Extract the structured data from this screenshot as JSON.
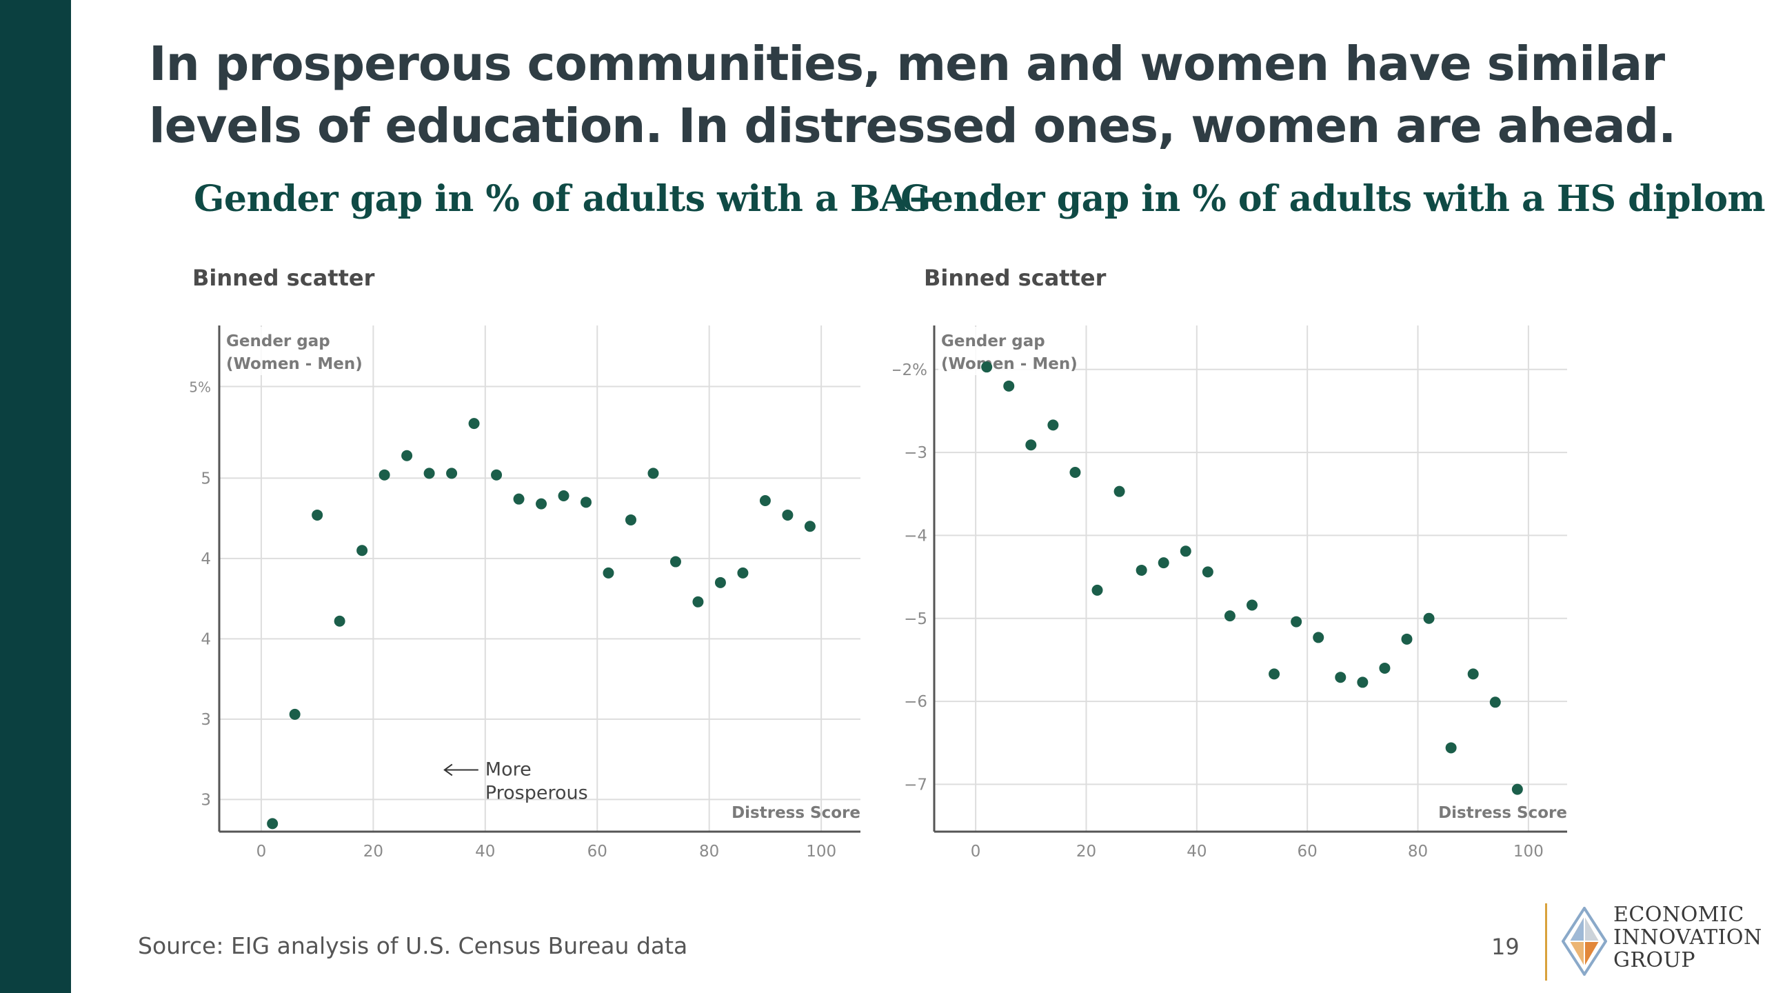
{
  "headline": "In prosperous communities, men and women have similar levels of education. In distressed ones, women are ahead.",
  "source": "Source: EIG analysis of U.S. Census Bureau data",
  "page_number": "19",
  "logo": {
    "lines": [
      "ECONOMIC",
      "INNOVATION",
      "GROUP"
    ]
  },
  "colors": {
    "sidebar": "#0b4040",
    "title": "#0f4a45",
    "dot": "#1b5e4a",
    "grid": "#dddddd",
    "logo_accent": "#d9a23c"
  },
  "chart_data": [
    {
      "type": "scatter",
      "title": "Gender gap in % of adults with a BA+",
      "subtitle": "Binned scatter",
      "ylabel_lines": [
        "Gender gap",
        "(Women - Men)"
      ],
      "xlabel": "Distress Score",
      "xlim": [
        -7.5,
        107
      ],
      "ylim": [
        2.3,
        5.45
      ],
      "xticks": [
        0,
        20,
        40,
        60,
        80,
        100
      ],
      "yticks": [
        {
          "value": 2.5,
          "label": "3"
        },
        {
          "value": 3.0,
          "label": "3"
        },
        {
          "value": 3.5,
          "label": "4"
        },
        {
          "value": 4.0,
          "label": "4"
        },
        {
          "value": 4.5,
          "label": "5"
        },
        {
          "value": 5.07,
          "label": "5%"
        }
      ],
      "annotation": {
        "lines": [
          "More",
          "Prosperous"
        ],
        "x": 40,
        "y": 2.65
      },
      "points": [
        {
          "x": 2,
          "y": 2.35
        },
        {
          "x": 6,
          "y": 3.03
        },
        {
          "x": 10,
          "y": 4.27
        },
        {
          "x": 14,
          "y": 3.61
        },
        {
          "x": 18,
          "y": 4.05
        },
        {
          "x": 22,
          "y": 4.52
        },
        {
          "x": 26,
          "y": 4.64
        },
        {
          "x": 30,
          "y": 4.53
        },
        {
          "x": 34,
          "y": 4.53
        },
        {
          "x": 38,
          "y": 4.84
        },
        {
          "x": 42,
          "y": 4.52
        },
        {
          "x": 46,
          "y": 4.37
        },
        {
          "x": 50,
          "y": 4.34
        },
        {
          "x": 54,
          "y": 4.39
        },
        {
          "x": 58,
          "y": 4.35
        },
        {
          "x": 62,
          "y": 3.91
        },
        {
          "x": 66,
          "y": 4.24
        },
        {
          "x": 70,
          "y": 4.53
        },
        {
          "x": 74,
          "y": 3.98
        },
        {
          "x": 78,
          "y": 3.73
        },
        {
          "x": 82,
          "y": 3.85
        },
        {
          "x": 86,
          "y": 3.91
        },
        {
          "x": 90,
          "y": 4.36
        },
        {
          "x": 94,
          "y": 4.27
        },
        {
          "x": 98,
          "y": 4.2
        }
      ]
    },
    {
      "type": "scatter",
      "title": "Gender gap in % of adults with a HS diploma",
      "subtitle": "Binned scatter",
      "ylabel_lines": [
        "Gender gap",
        "(Women - Men)"
      ],
      "xlabel": "Distress Score",
      "xlim": [
        -7.5,
        107
      ],
      "ylim": [
        -7.57,
        -1.47
      ],
      "xticks": [
        0,
        20,
        40,
        60,
        80,
        100
      ],
      "yticks": [
        {
          "value": -2,
          "label": "−2%"
        },
        {
          "value": -3,
          "label": "−3"
        },
        {
          "value": -4,
          "label": "−4"
        },
        {
          "value": -5,
          "label": "−5"
        },
        {
          "value": -6,
          "label": "−6"
        },
        {
          "value": -7,
          "label": "−7"
        }
      ],
      "points": [
        {
          "x": 2,
          "y": -1.97
        },
        {
          "x": 6,
          "y": -2.2
        },
        {
          "x": 10,
          "y": -2.91
        },
        {
          "x": 14,
          "y": -2.67
        },
        {
          "x": 18,
          "y": -3.24
        },
        {
          "x": 22,
          "y": -4.66
        },
        {
          "x": 26,
          "y": -3.47
        },
        {
          "x": 30,
          "y": -4.42
        },
        {
          "x": 34,
          "y": -4.33
        },
        {
          "x": 38,
          "y": -4.19
        },
        {
          "x": 42,
          "y": -4.44
        },
        {
          "x": 46,
          "y": -4.97
        },
        {
          "x": 50,
          "y": -4.84
        },
        {
          "x": 54,
          "y": -5.67
        },
        {
          "x": 58,
          "y": -5.04
        },
        {
          "x": 62,
          "y": -5.23
        },
        {
          "x": 66,
          "y": -5.71
        },
        {
          "x": 70,
          "y": -5.77
        },
        {
          "x": 74,
          "y": -5.6
        },
        {
          "x": 78,
          "y": -5.25
        },
        {
          "x": 82,
          "y": -5.0
        },
        {
          "x": 86,
          "y": -6.56
        },
        {
          "x": 90,
          "y": -5.67
        },
        {
          "x": 94,
          "y": -6.01
        },
        {
          "x": 98,
          "y": -7.06
        }
      ]
    }
  ]
}
